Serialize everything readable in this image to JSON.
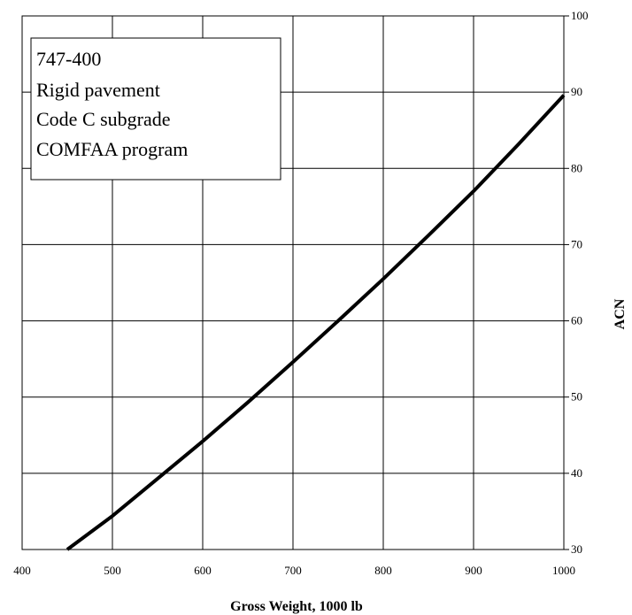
{
  "chart_data": {
    "type": "line",
    "xlabel": "Gross Weight, 1000 lb",
    "ylabel": "ACN",
    "xlim": [
      400,
      1000
    ],
    "ylim": [
      30,
      100
    ],
    "x_ticks": [
      400,
      500,
      600,
      700,
      800,
      900,
      1000
    ],
    "y_ticks": [
      30,
      40,
      50,
      60,
      70,
      80,
      90,
      100
    ],
    "y_axis_side": "right",
    "grid": true,
    "legend_box": {
      "placement": "top-left",
      "lines": [
        "747-400",
        "Rigid pavement",
        "Code C subgrade",
        "COMFAA program"
      ]
    },
    "series": [
      {
        "color": "#000000",
        "x": [
          450,
          500,
          550,
          600,
          650,
          700,
          750,
          800,
          850,
          900,
          950,
          1000
        ],
        "y": [
          30.0,
          34.4,
          39.3,
          44.2,
          49.3,
          54.6,
          60.0,
          65.5,
          71.2,
          77.0,
          83.2,
          89.6
        ]
      }
    ]
  }
}
